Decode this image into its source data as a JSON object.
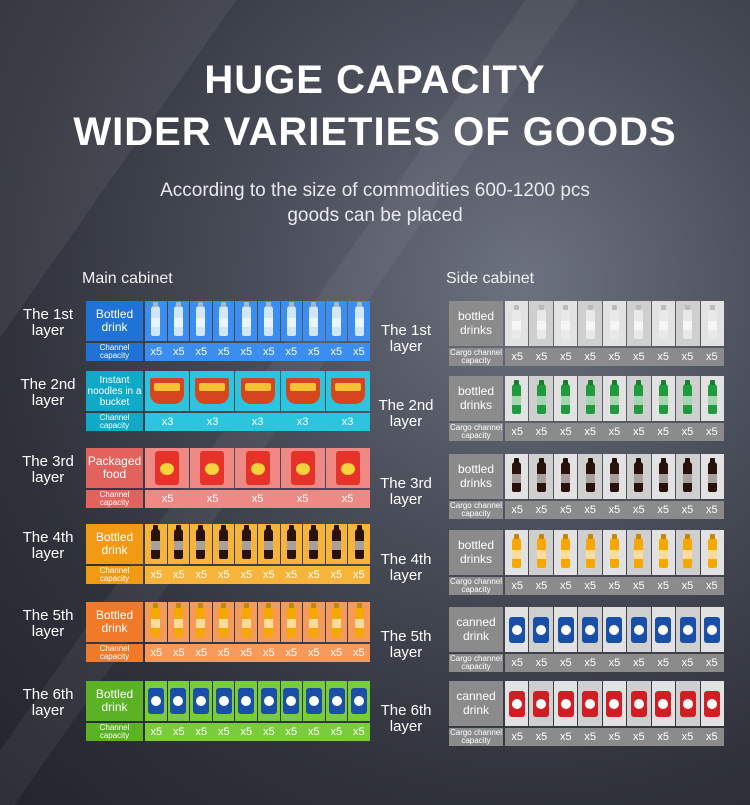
{
  "header": {
    "title_line1": "HUGE CAPACITY",
    "title_line2": "WIDER VARIETIES OF GOODS",
    "subtitle_line1": "According to the size of commodities 600-1200 pcs",
    "subtitle_line2": "goods can be placed"
  },
  "main_cabinet": {
    "title": "Main cabinet",
    "layers": [
      {
        "label_line1": "The 1st",
        "label_line2": "layer",
        "product_name": "Bottled drink",
        "capacity_label": "Channel capacity",
        "count": "x5",
        "slots": 10,
        "product": "water-bottle",
        "color": "#1f72d6",
        "light": "#3b8df0"
      },
      {
        "label_line1": "The 2nd",
        "label_line2": "layer",
        "product_name": "Instant noodles in a bucket",
        "capacity_label": "Channel capacity",
        "count": "x3",
        "slots": 5,
        "product": "noodle-bucket",
        "color": "#11a9c8",
        "light": "#2cc5df"
      },
      {
        "label_line1": "The 3rd",
        "label_line2": "layer",
        "product_name": "Packaged food",
        "capacity_label": "Channel capacity",
        "count": "x5",
        "slots": 5,
        "product": "chips-bag",
        "color": "#e2625d",
        "light": "#ef8985"
      },
      {
        "label_line1": "The 4th",
        "label_line2": "layer",
        "product_name": "Bottled drink",
        "capacity_label": "Channel capacity",
        "count": "x5",
        "slots": 10,
        "product": "cola-bottle",
        "color": "#f29a14",
        "light": "#f7b43b"
      },
      {
        "label_line1": "The 5th",
        "label_line2": "layer",
        "product_name": "Bottled drink",
        "capacity_label": "Channel capacity",
        "count": "x5",
        "slots": 10,
        "product": "orange-soda-bottle",
        "color": "#f07a2a",
        "light": "#f59a5a"
      },
      {
        "label_line1": "The 6th",
        "label_line2": "layer",
        "product_name": "Bottled drink",
        "capacity_label": "Channel capacity",
        "count": "x5",
        "slots": 10,
        "product": "soda-can",
        "color": "#5cb225",
        "light": "#79cc3c"
      }
    ]
  },
  "side_cabinet": {
    "title": "Side cabinet",
    "layers": [
      {
        "label_line1": "The 1st",
        "label_line2": "layer",
        "product_name": "bottled drinks",
        "capacity_label": "Cargo channel capacity",
        "count": "x5",
        "slots": 9,
        "product": "tea-bottle"
      },
      {
        "label_line1": "The 2nd",
        "label_line2": "layer",
        "product_name": "bottled drinks",
        "capacity_label": "Cargo channel capacity",
        "count": "x5",
        "slots": 9,
        "product": "lemon-soda-bottle"
      },
      {
        "label_line1": "The 3rd",
        "label_line2": "layer",
        "product_name": "bottled drinks",
        "capacity_label": "Cargo channel capacity",
        "count": "x5",
        "slots": 9,
        "product": "cola-bottle"
      },
      {
        "label_line1": "The 4th",
        "label_line2": "layer",
        "product_name": "bottled drinks",
        "capacity_label": "Cargo channel capacity",
        "count": "x5",
        "slots": 9,
        "product": "orange-soda-bottle"
      },
      {
        "label_line1": "The 5th",
        "label_line2": "layer",
        "product_name": "canned drink",
        "capacity_label": "Cargo channel capacity",
        "count": "x5",
        "slots": 9,
        "product": "blue-soda-can"
      },
      {
        "label_line1": "The 6th",
        "label_line2": "layer",
        "product_name": "canned drink",
        "capacity_label": "Cargo channel capacity",
        "count": "x5",
        "slots": 9,
        "product": "red-soda-can"
      }
    ]
  },
  "colors": {
    "side_dark": "#8b8b8b",
    "side_light": "#b4b4b4",
    "water": "#cfe7f6",
    "cola": "#2a120c",
    "orange_soda": "#f6a800",
    "lemon_soda": "#1f9a3c",
    "tea": "#e9e9e9",
    "blue_can": "#1a4fa8",
    "red_can": "#cf1f25"
  }
}
